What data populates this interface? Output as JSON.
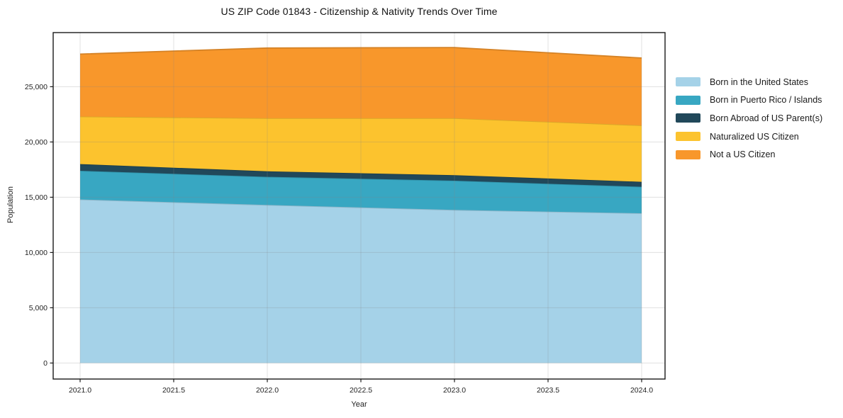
{
  "title": "US ZIP Code 01843 - Citizenship & Nativity Trends Over Time",
  "chart_data": {
    "type": "area",
    "stacked": true,
    "title": "US ZIP Code 01843 - Citizenship & Nativity Trends Over Time",
    "xlabel": "Year",
    "ylabel": "Population",
    "x": [
      2021,
      2022,
      2023,
      2024
    ],
    "series": [
      {
        "name": "Born in the United States",
        "color": "#a5d2e8",
        "values": [
          14800,
          14300,
          13850,
          13550
        ]
      },
      {
        "name": "Born in Puerto Rico / Islands",
        "color": "#38a7c2",
        "values": [
          2600,
          2550,
          2650,
          2400
        ]
      },
      {
        "name": "Born Abroad of US Parent(s)",
        "color": "#21485a",
        "values": [
          600,
          500,
          500,
          450
        ]
      },
      {
        "name": "Naturalized US Citizen",
        "color": "#fcc32e",
        "values": [
          4300,
          4800,
          5150,
          5100
        ]
      },
      {
        "name": "Not a US Citizen",
        "color": "#f8972b",
        "values": [
          5650,
          6350,
          6400,
          6100
        ]
      }
    ],
    "stack_totals": [
      27950,
      28500,
      28550,
      27600
    ],
    "xticks": [
      2021.0,
      2021.5,
      2022.0,
      2022.5,
      2023.0,
      2023.5,
      2024.0
    ],
    "xtick_labels": [
      "2021.0",
      "2021.5",
      "2022.0",
      "2022.5",
      "2023.0",
      "2023.5",
      "2024.0"
    ],
    "yticks": [
      0,
      5000,
      10000,
      15000,
      20000,
      25000
    ],
    "ytick_labels": [
      "0",
      "5,000",
      "10,000",
      "15,000",
      "20,000",
      "25,000"
    ],
    "xlim": [
      2020.856,
      2024.125
    ],
    "ylim": [
      -1450,
      29900
    ],
    "grid": true,
    "legend_position": "right-outside"
  },
  "colors": {
    "spine": "#1a1a1a",
    "tick_label": "#1f1f1f",
    "grid_rgba": "rgba(130,130,130,0.25)",
    "background": "#ffffff"
  }
}
